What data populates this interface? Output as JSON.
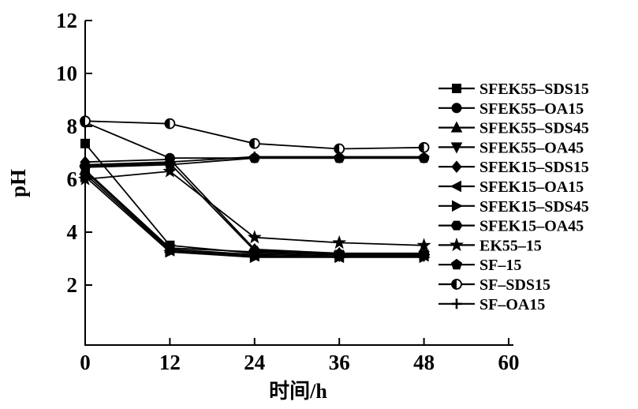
{
  "figure": {
    "background_color": "#ffffff",
    "ink_color": "#000000"
  },
  "chart_data": {
    "type": "line",
    "title": "",
    "xlabel": "时间/h",
    "ylabel": "pH",
    "x": [
      0,
      12,
      24,
      36,
      48
    ],
    "xlim": [
      0,
      60
    ],
    "ylim": [
      0,
      12
    ],
    "x_ticks": [
      0,
      12,
      24,
      36,
      48,
      60
    ],
    "y_ticks": [
      2,
      4,
      6,
      8,
      10,
      12
    ],
    "grid": false,
    "legend_position": "right",
    "line_color": "#000000",
    "series": [
      {
        "name": "SFEK55–SDS15",
        "marker": "square",
        "values": [
          7.35,
          3.5,
          3.2,
          3.15,
          3.15
        ]
      },
      {
        "name": "SFEK55–OA15",
        "marker": "circle",
        "values": [
          8.15,
          6.8,
          6.8,
          6.8,
          6.8
        ]
      },
      {
        "name": "SFEK55–SDS45",
        "marker": "triangle-up",
        "values": [
          6.35,
          3.4,
          3.25,
          3.2,
          3.2
        ]
      },
      {
        "name": "SFEK55–OA45",
        "marker": "triangle-down",
        "values": [
          6.3,
          3.35,
          3.15,
          3.1,
          3.1
        ]
      },
      {
        "name": "SFEK15–SDS15",
        "marker": "diamond",
        "values": [
          6.65,
          6.75,
          3.35,
          3.2,
          3.15
        ]
      },
      {
        "name": "SFEK15–OA15",
        "marker": "triangle-left",
        "values": [
          6.2,
          3.3,
          3.1,
          3.05,
          3.1
        ]
      },
      {
        "name": "SFEK15–SDS45",
        "marker": "triangle-right",
        "values": [
          6.1,
          3.25,
          3.05,
          3.05,
          3.05
        ]
      },
      {
        "name": "SFEK15–OA45",
        "marker": "hexagon",
        "values": [
          6.5,
          6.6,
          3.3,
          3.15,
          3.15
        ]
      },
      {
        "name": "EK55–15",
        "marker": "star",
        "values": [
          6.0,
          6.3,
          3.8,
          3.6,
          3.5
        ]
      },
      {
        "name": "SF–15",
        "marker": "pentagon",
        "values": [
          6.45,
          6.55,
          6.8,
          6.8,
          6.8
        ]
      },
      {
        "name": "SF–SDS15",
        "marker": "half-circle",
        "values": [
          8.2,
          8.1,
          7.35,
          7.15,
          7.2
        ]
      },
      {
        "name": "SF–OA15",
        "marker": "plus",
        "values": [
          6.55,
          6.65,
          6.85,
          6.85,
          6.85
        ]
      }
    ]
  }
}
